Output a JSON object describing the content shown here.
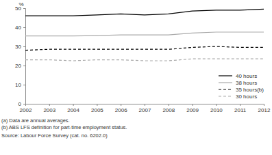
{
  "chart_data": {
    "type": "line",
    "y_label": "%",
    "x": [
      2002,
      2003,
      2004,
      2005,
      2006,
      2007,
      2008,
      2009,
      2010,
      2011,
      2012
    ],
    "xlim": [
      2002,
      2012
    ],
    "xticks": [
      2002,
      2003,
      2004,
      2005,
      2006,
      2007,
      2008,
      2009,
      2010,
      2011,
      2012
    ],
    "ylim": [
      0,
      50
    ],
    "yticks": [
      0,
      10,
      20,
      30,
      40,
      50
    ],
    "grid": false,
    "legend": "lower right",
    "series": [
      {
        "name": "40 hours",
        "color": "#000000",
        "line_style": "solid",
        "values": [
          46,
          46,
          46,
          46.5,
          47,
          46.5,
          47,
          48.5,
          49,
          49,
          49.5
        ]
      },
      {
        "name": "38 hours",
        "color": "#aaaaaa",
        "line_style": "solid",
        "values": [
          35.5,
          35.5,
          35.5,
          35.7,
          36,
          36,
          36,
          37,
          37.5,
          37.5,
          37.5
        ]
      },
      {
        "name": "35 hours(b)",
        "color": "#000000",
        "line_style": "dashed",
        "values": [
          28,
          28.5,
          28.5,
          28.5,
          28.5,
          28.5,
          28.5,
          29.5,
          30,
          29.5,
          29.5
        ]
      },
      {
        "name": "30 hours",
        "color": "#aaaaaa",
        "line_style": "dashed",
        "values": [
          23,
          23,
          22.5,
          23,
          23,
          22.5,
          22.5,
          23.5,
          23.5,
          23.5,
          23.5
        ]
      }
    ],
    "notes": [
      "(a) Data are annual averages.",
      "(b) ABS LFS definition for part-time employment status."
    ],
    "source": "Source: Labour Force Survey (cat. no. 6202.0)"
  }
}
